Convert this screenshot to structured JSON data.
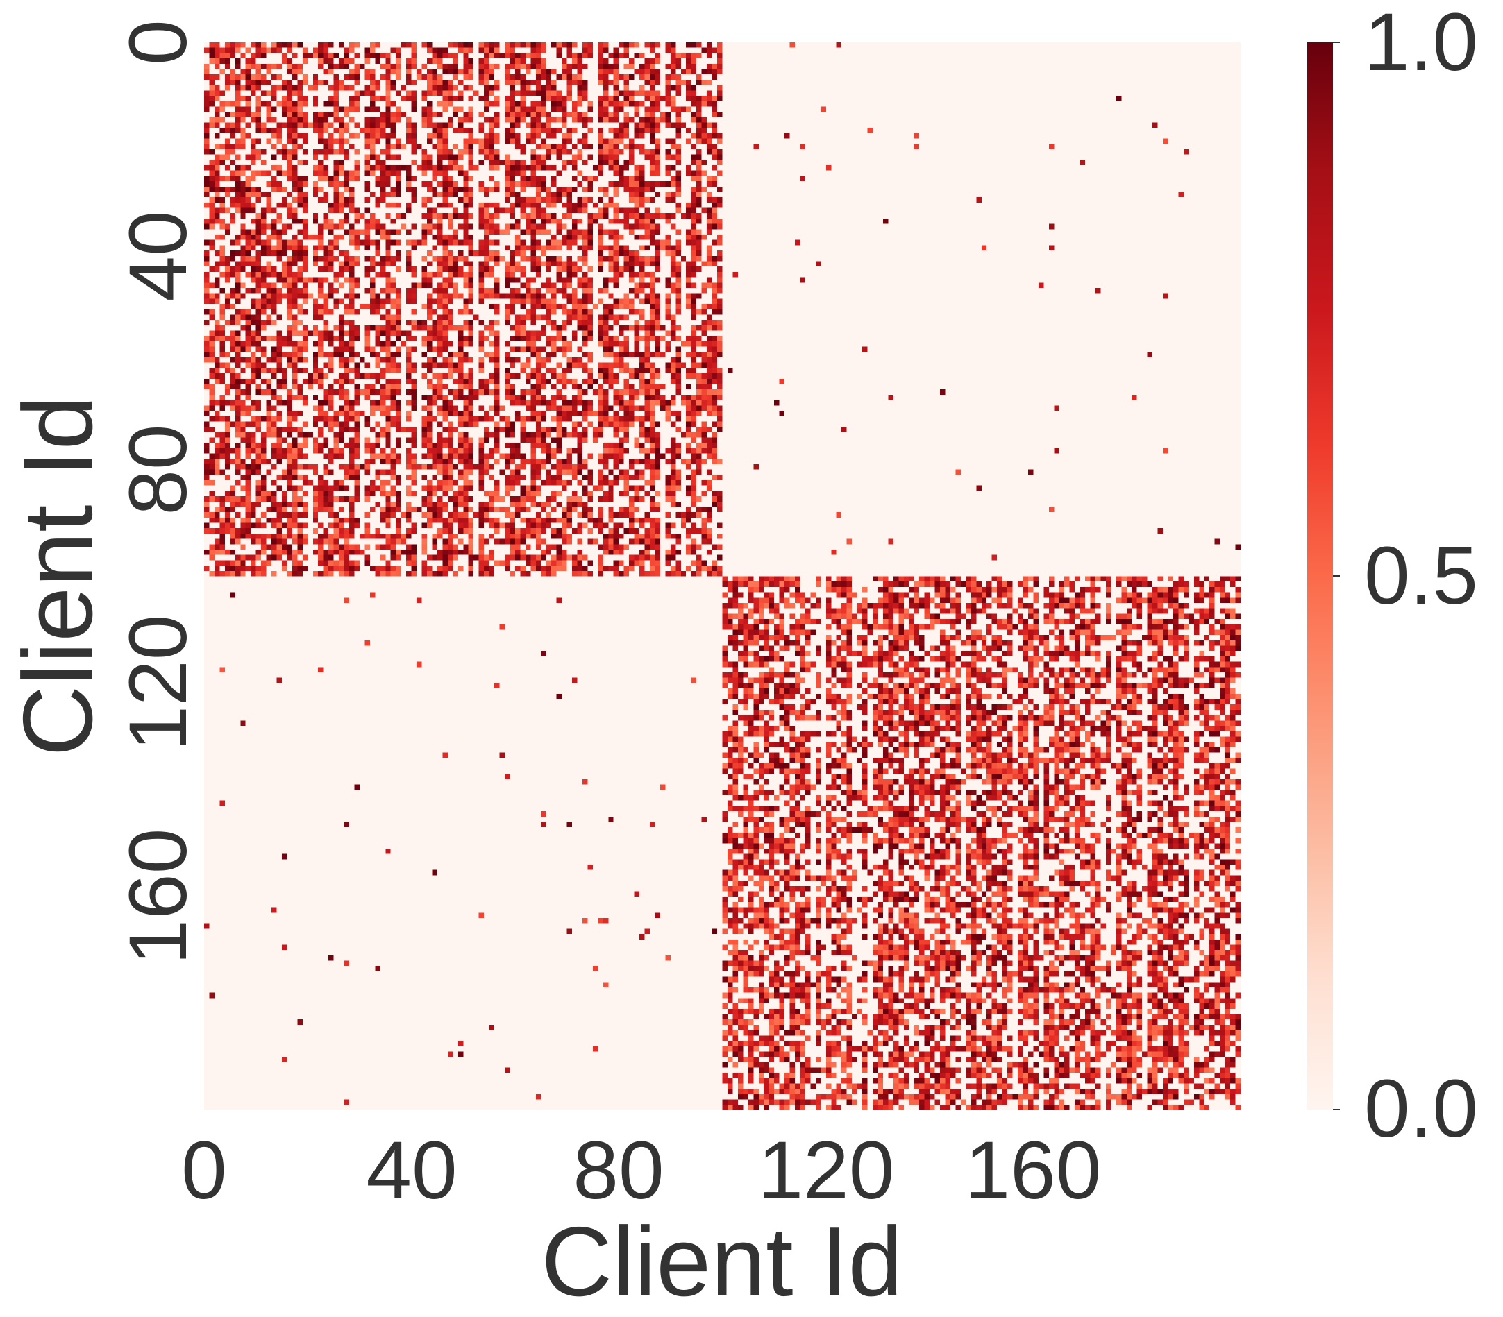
{
  "chart_data": {
    "type": "heatmap",
    "title": "",
    "xlabel": "Client Id",
    "ylabel": "Client Id",
    "n_rows": 200,
    "n_cols": 200,
    "x_ticks": [
      "0",
      "40",
      "80",
      "120",
      "160"
    ],
    "x_tick_values": [
      0,
      40,
      80,
      120,
      160
    ],
    "y_ticks": [
      "0",
      "40",
      "80",
      "120",
      "160"
    ],
    "y_tick_values": [
      0,
      40,
      80,
      120,
      160
    ],
    "colorbar": {
      "min": 0.0,
      "max": 1.0,
      "ticks": [
        "0.0",
        "0.5",
        "1.0"
      ],
      "tick_values": [
        0.0,
        0.5,
        1.0
      ],
      "colormap": "Reds"
    },
    "blocks": [
      {
        "rows": [
          0,
          99
        ],
        "cols": [
          0,
          99
        ],
        "pattern": "dense",
        "value_range": [
          0.0,
          1.0
        ]
      },
      {
        "rows": [
          100,
          199
        ],
        "cols": [
          100,
          199
        ],
        "pattern": "dense",
        "value_range": [
          0.0,
          1.0
        ]
      },
      {
        "rows": [
          0,
          99
        ],
        "cols": [
          100,
          199
        ],
        "pattern": "sparse",
        "value_range": [
          0.0,
          1.0
        ]
      },
      {
        "rows": [
          100,
          199
        ],
        "cols": [
          0,
          99
        ],
        "pattern": "sparse",
        "value_range": [
          0.0,
          1.0
        ]
      }
    ],
    "background_color": "#fff5f0",
    "max_color": "#67000d",
    "grid": false
  }
}
